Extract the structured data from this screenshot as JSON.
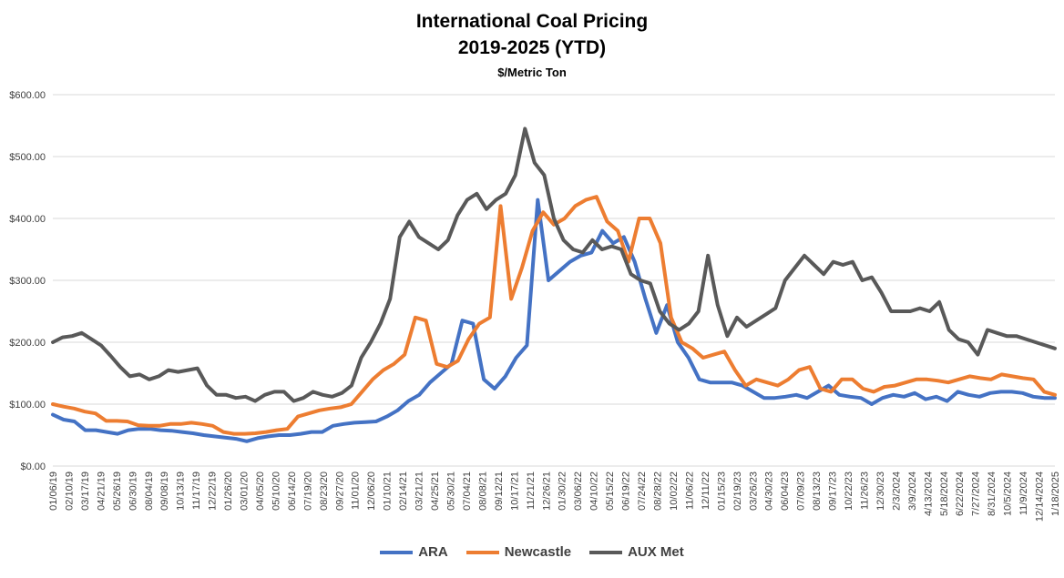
{
  "chart_data": {
    "type": "line",
    "title": "International Coal Pricing",
    "subtitle": "2019-2025 (YTD)",
    "unit_label": "$/Metric Ton",
    "ylim": [
      0,
      600
    ],
    "y_ticks": [
      "$0.00",
      "$100.00",
      "$200.00",
      "$300.00",
      "$400.00",
      "$500.00",
      "$600.00"
    ],
    "x_tick_labels": [
      "01/06/19",
      "02/10/19",
      "03/17/19",
      "04/21/19",
      "05/26/19",
      "06/30/19",
      "08/04/19",
      "09/08/19",
      "10/13/19",
      "11/17/19",
      "12/22/19",
      "01/26/20",
      "03/01/20",
      "04/05/20",
      "05/10/20",
      "06/14/20",
      "07/19/20",
      "08/23/20",
      "09/27/20",
      "11/01/20",
      "12/06/20",
      "01/10/21",
      "02/14/21",
      "03/21/21",
      "04/25/21",
      "05/30/21",
      "07/04/21",
      "08/08/21",
      "09/12/21",
      "10/17/21",
      "11/21/21",
      "12/26/21",
      "01/30/22",
      "03/06/22",
      "04/10/22",
      "05/15/22",
      "06/19/22",
      "07/24/22",
      "08/28/22",
      "10/02/22",
      "11/06/22",
      "12/11/22",
      "01/15/23",
      "02/19/23",
      "03/26/23",
      "04/30/23",
      "06/04/23",
      "07/09/23",
      "08/13/23",
      "09/17/23",
      "10/22/23",
      "11/26/23",
      "12/30/23",
      "2/3/2024",
      "3/9/2024",
      "4/13/2024",
      "5/18/2024",
      "6/22/2024",
      "7/27/2024",
      "8/31/2024",
      "10/5/2024",
      "11/9/2024",
      "12/14/2024",
      "1/18/2025"
    ],
    "grid": true,
    "legend_position": "bottom",
    "series": [
      {
        "name": "ARA",
        "color": "#4472C4",
        "values": [
          83,
          75,
          72,
          58,
          58,
          55,
          52,
          58,
          60,
          60,
          58,
          57,
          55,
          53,
          50,
          48,
          46,
          44,
          40,
          45,
          48,
          50,
          50,
          52,
          55,
          55,
          65,
          68,
          70,
          71,
          72,
          80,
          90,
          105,
          115,
          135,
          150,
          165,
          235,
          230,
          140,
          125,
          145,
          175,
          195,
          430,
          300,
          315,
          330,
          340,
          345,
          380,
          360,
          370,
          330,
          270,
          215,
          260,
          200,
          175,
          140,
          135,
          135,
          135,
          130,
          120,
          110,
          110,
          112,
          115,
          110,
          120,
          130,
          115,
          112,
          110,
          100,
          110,
          115,
          112,
          118,
          108,
          112,
          105,
          120,
          115,
          112,
          118,
          120,
          120,
          118,
          112,
          110,
          110
        ]
      },
      {
        "name": "Newcastle",
        "color": "#ED7D31",
        "values": [
          100,
          96,
          93,
          88,
          85,
          73,
          73,
          72,
          66,
          65,
          65,
          68,
          68,
          70,
          68,
          65,
          55,
          52,
          52,
          53,
          55,
          58,
          60,
          80,
          85,
          90,
          93,
          95,
          100,
          120,
          140,
          155,
          165,
          180,
          240,
          235,
          165,
          160,
          170,
          205,
          230,
          240,
          420,
          270,
          320,
          380,
          410,
          390,
          400,
          420,
          430,
          435,
          395,
          380,
          330,
          400,
          400,
          360,
          240,
          200,
          190,
          175,
          180,
          185,
          155,
          130,
          140,
          135,
          130,
          140,
          155,
          160,
          125,
          120,
          140,
          140,
          125,
          120,
          128,
          130,
          135,
          140,
          140,
          138,
          135,
          140,
          145,
          142,
          140,
          148,
          145,
          142,
          140,
          120,
          115
        ]
      },
      {
        "name": "AUX Met",
        "color": "#595959",
        "values": [
          200,
          208,
          210,
          215,
          205,
          195,
          178,
          160,
          145,
          148,
          140,
          145,
          155,
          152,
          155,
          158,
          130,
          115,
          115,
          110,
          112,
          105,
          115,
          120,
          120,
          105,
          110,
          120,
          115,
          112,
          118,
          130,
          175,
          200,
          230,
          270,
          370,
          395,
          370,
          360,
          350,
          365,
          405,
          430,
          440,
          415,
          430,
          440,
          470,
          545,
          490,
          470,
          400,
          365,
          350,
          345,
          365,
          350,
          355,
          350,
          310,
          300,
          295,
          250,
          230,
          220,
          230,
          250,
          340,
          260,
          210,
          240,
          225,
          235,
          245,
          255,
          300,
          320,
          340,
          325,
          310,
          330,
          325,
          330,
          300,
          305,
          280,
          250,
          250,
          250,
          255,
          250,
          265,
          220,
          205,
          200,
          180,
          220,
          215,
          210,
          210,
          205,
          200,
          195,
          190
        ]
      }
    ]
  }
}
